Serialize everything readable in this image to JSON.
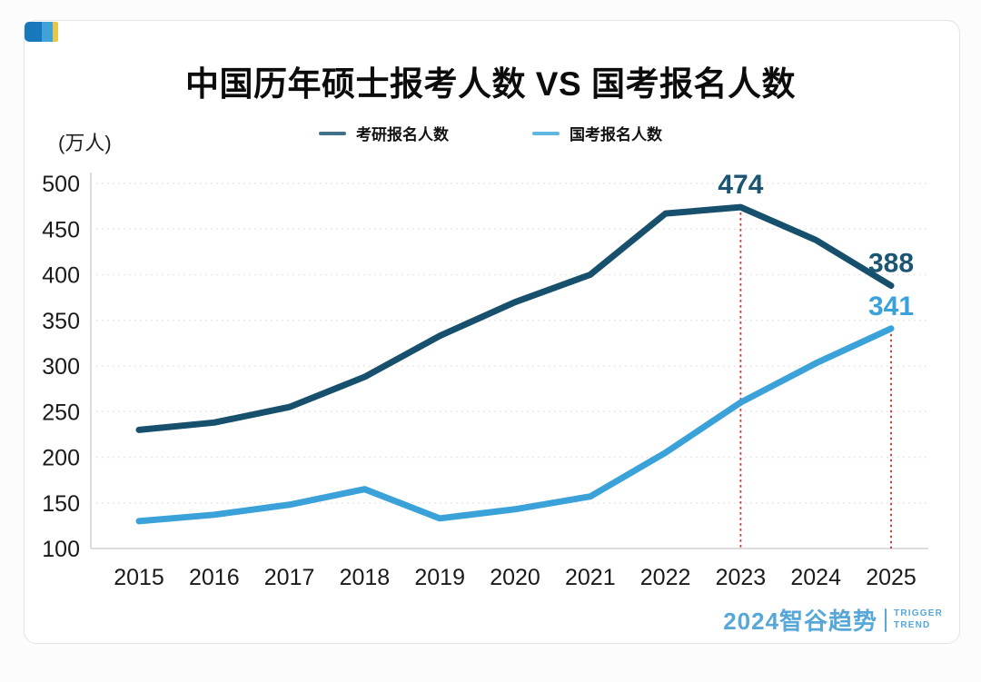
{
  "header": {
    "title": "中国历年硕士报考人数 VS 国考报名人数"
  },
  "unit_label": "(万人)",
  "legend": [
    {
      "label": "考研报名人数",
      "swatch_color": "#40708a"
    },
    {
      "label": "国考报名人数",
      "swatch_color": "#62b7e2"
    }
  ],
  "chart_data": {
    "type": "line",
    "title": "中国历年硕士报考人数 VS 国考报名人数",
    "ylabel": "(万人)",
    "xlabel": "",
    "categories": [
      "2015",
      "2016",
      "2017",
      "2018",
      "2019",
      "2020",
      "2021",
      "2022",
      "2023",
      "2024",
      "2025"
    ],
    "series": [
      {
        "name": "考研报名人数",
        "color": "#17506d",
        "values": [
          230,
          238,
          255,
          288,
          333,
          370,
          400,
          467,
          474,
          438,
          388
        ]
      },
      {
        "name": "国考报名人数",
        "color": "#3aa2d9",
        "values": [
          130,
          137,
          148,
          165,
          133,
          143,
          157,
          205,
          260,
          303,
          341
        ]
      }
    ],
    "ylim": [
      100,
      500
    ],
    "yticks": [
      100,
      150,
      200,
      250,
      300,
      350,
      400,
      450,
      500
    ],
    "grid": true,
    "grid_style": "dotted",
    "legend_position": "top",
    "annotations": [
      {
        "category": "2023",
        "series": "考研报名人数",
        "text": "474",
        "color": "#1b5573"
      },
      {
        "category": "2025",
        "series": "考研报名人数",
        "text": "388",
        "color": "#1b5573"
      },
      {
        "category": "2025",
        "series": "国考报名人数",
        "text": "341",
        "color": "#3aa2d9"
      }
    ],
    "reference_lines": [
      {
        "category": "2023",
        "series": "考研报名人数",
        "style": "dotted",
        "color": "#b43b32"
      },
      {
        "category": "2025",
        "series": "国考报名人数",
        "style": "dotted",
        "color": "#b43b32"
      }
    ]
  },
  "corner_icon": {
    "colors": [
      "#1878bb",
      "#3fa3da",
      "#e7c64b"
    ]
  },
  "footer": {
    "logo_text": "2024智谷趋势",
    "tagline_line1": "TRIGGER",
    "tagline_line2": "TREND",
    "logo_color": "#57a8d8"
  }
}
